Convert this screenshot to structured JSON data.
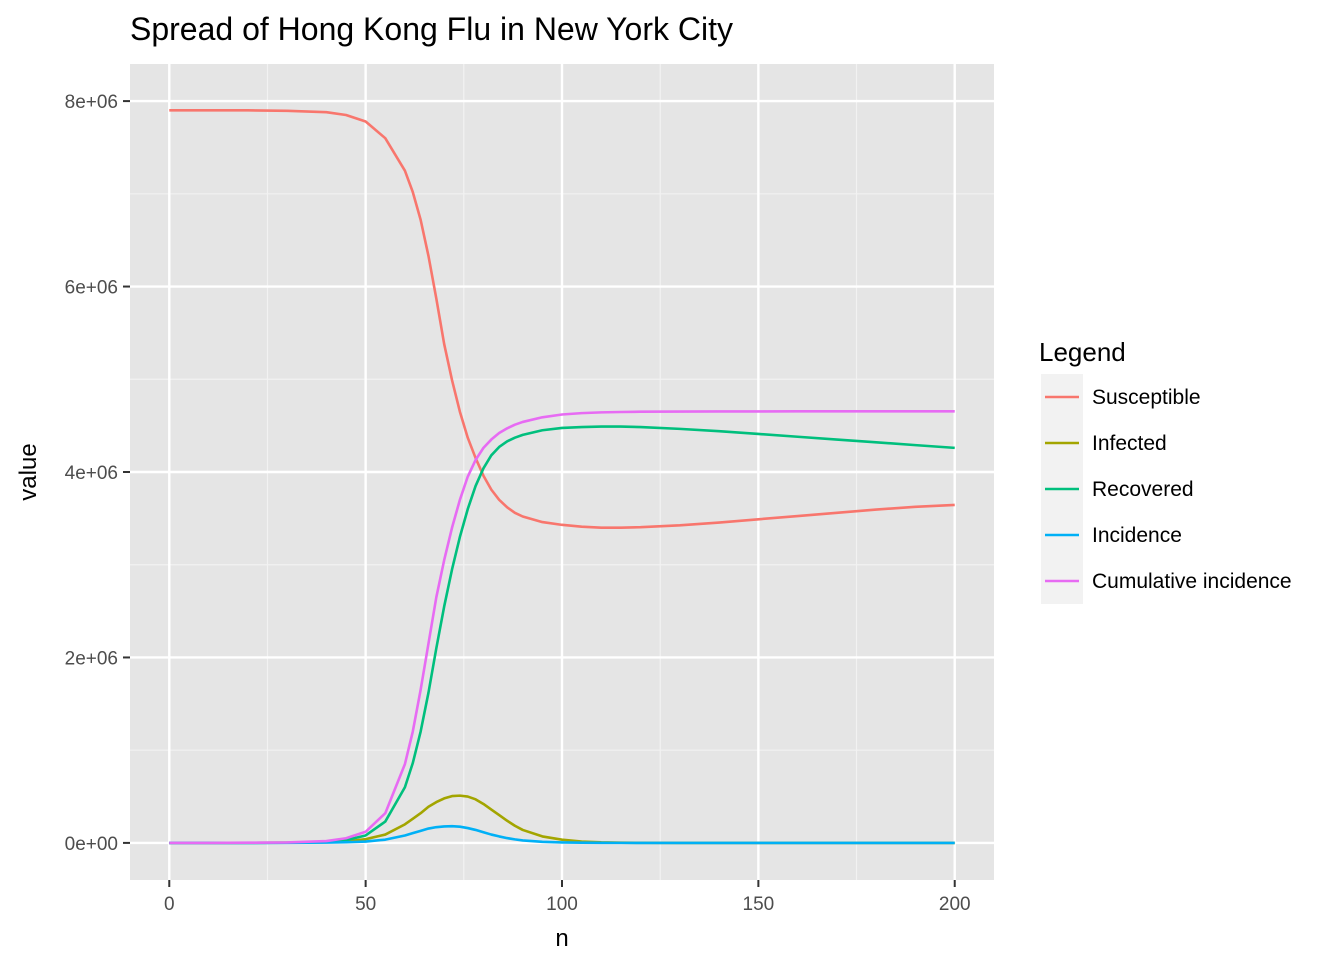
{
  "chart_data": {
    "type": "line",
    "title": "Spread of Hong Kong Flu in New York City",
    "xlabel": "n",
    "ylabel": "value",
    "xlim": [
      -10,
      210
    ],
    "ylim": [
      -400000,
      8400000
    ],
    "x_ticks": [
      0,
      50,
      100,
      150,
      200
    ],
    "x_tick_labels": [
      "0",
      "50",
      "100",
      "150",
      "200"
    ],
    "y_ticks": [
      0,
      2000000,
      4000000,
      6000000,
      8000000
    ],
    "y_tick_labels": [
      "0e+00",
      "2e+06",
      "4e+06",
      "6e+06",
      "8e+06"
    ],
    "grid": true,
    "legend_title": "Legend",
    "legend_position": "right",
    "x": [
      0,
      10,
      20,
      30,
      40,
      45,
      50,
      55,
      60,
      62,
      64,
      66,
      68,
      70,
      72,
      74,
      76,
      78,
      80,
      82,
      84,
      86,
      88,
      90,
      95,
      100,
      105,
      110,
      115,
      120,
      130,
      140,
      150,
      160,
      170,
      180,
      190,
      200
    ],
    "series": [
      {
        "name": "Susceptible",
        "color": "#F8766D",
        "values": [
          7900000,
          7900000,
          7900000,
          7895000,
          7880000,
          7850000,
          7780000,
          7600000,
          7250000,
          7020000,
          6720000,
          6330000,
          5870000,
          5380000,
          4990000,
          4650000,
          4370000,
          4150000,
          3960000,
          3810000,
          3700000,
          3620000,
          3560000,
          3520000,
          3460000,
          3430000,
          3410000,
          3400000,
          3400000,
          3405000,
          3425000,
          3455000,
          3490000,
          3525000,
          3560000,
          3595000,
          3625000,
          3645000
        ]
      },
      {
        "name": "Infected",
        "color": "#A3A500",
        "values": [
          0,
          0,
          1000,
          2000,
          8000,
          15000,
          40000,
          90000,
          200000,
          260000,
          320000,
          390000,
          440000,
          480000,
          505000,
          510000,
          500000,
          470000,
          420000,
          360000,
          300000,
          240000,
          185000,
          140000,
          70000,
          35000,
          15000,
          6000,
          2500,
          1000,
          0,
          0,
          0,
          0,
          0,
          0,
          0,
          0
        ]
      },
      {
        "name": "Recovered",
        "color": "#00BF7D",
        "values": [
          0,
          0,
          1000,
          3000,
          12000,
          30000,
          80000,
          230000,
          600000,
          860000,
          1200000,
          1620000,
          2100000,
          2550000,
          2950000,
          3300000,
          3600000,
          3850000,
          4040000,
          4180000,
          4270000,
          4330000,
          4370000,
          4400000,
          4450000,
          4475000,
          4485000,
          4490000,
          4490000,
          4485000,
          4465000,
          4440000,
          4410000,
          4380000,
          4350000,
          4320000,
          4290000,
          4260000
        ]
      },
      {
        "name": "Incidence",
        "color": "#00B0F6",
        "values": [
          0,
          0,
          0,
          1000,
          3000,
          7000,
          15000,
          35000,
          80000,
          105000,
          130000,
          155000,
          170000,
          178000,
          180000,
          175000,
          160000,
          140000,
          115000,
          90000,
          70000,
          52000,
          38000,
          27000,
          12000,
          5000,
          2000,
          800,
          300,
          100,
          0,
          0,
          0,
          0,
          0,
          0,
          0,
          0
        ]
      },
      {
        "name": "Cumulative incidence",
        "color": "#E76BF3",
        "values": [
          0,
          0,
          2000,
          5000,
          20000,
          50000,
          120000,
          320000,
          850000,
          1200000,
          1650000,
          2150000,
          2650000,
          3050000,
          3400000,
          3700000,
          3950000,
          4130000,
          4260000,
          4350000,
          4420000,
          4470000,
          4510000,
          4540000,
          4590000,
          4620000,
          4635000,
          4643000,
          4647000,
          4650000,
          4652000,
          4653000,
          4653000,
          4654000,
          4654000,
          4654000,
          4654000,
          4654000
        ]
      }
    ]
  }
}
